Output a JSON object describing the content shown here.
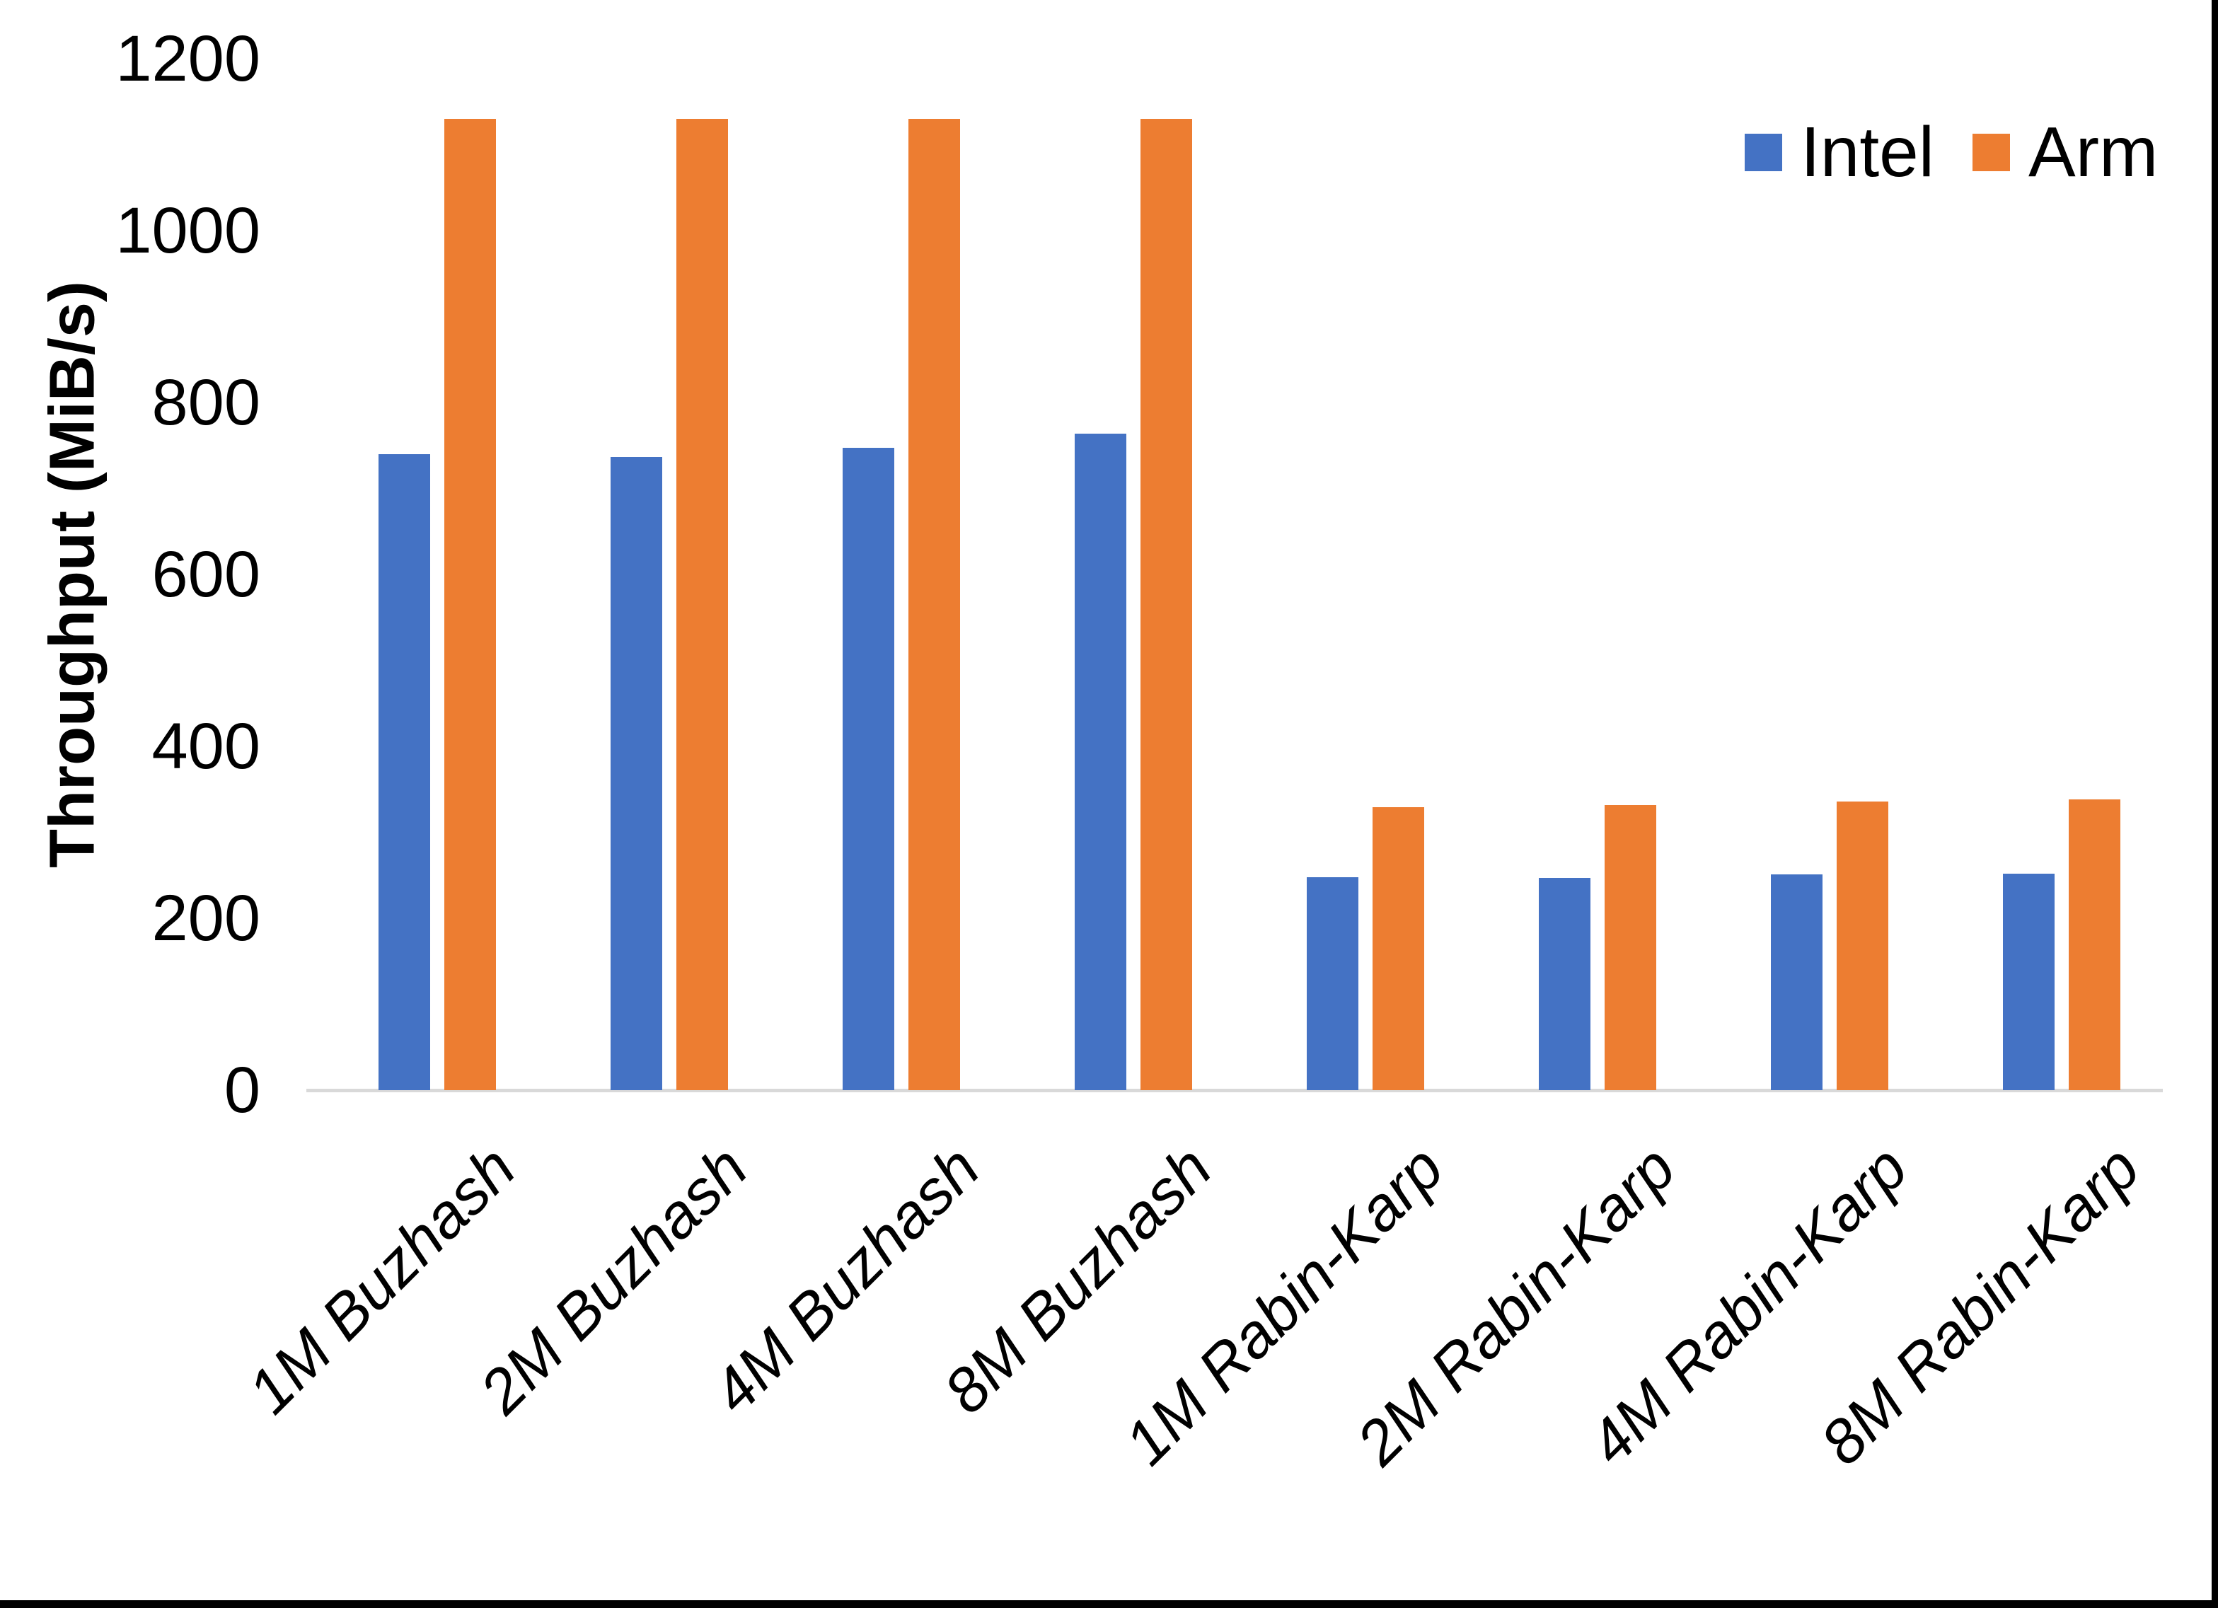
{
  "chart_data": {
    "type": "bar",
    "title": "",
    "ylabel": "Throughput (MiB/s)",
    "xlabel": "",
    "ylim": [
      0,
      1200
    ],
    "yticks": [
      0,
      200,
      400,
      600,
      800,
      1000,
      1200
    ],
    "grid": false,
    "legend_position": "top-right",
    "categories": [
      "1M Buzhash",
      "2M Buzhash",
      "4M Buzhash",
      "8M Buzhash",
      "1M Rabin-Karp",
      "2M Rabin-Karp",
      "4M Rabin-Karp",
      "8M Rabin-Karp"
    ],
    "series": [
      {
        "name": "Intel",
        "color": "#4472C4",
        "values": [
          740,
          737,
          747,
          764,
          248,
          247,
          251,
          252
        ]
      },
      {
        "name": "Arm",
        "color": "#ED7D31",
        "values": [
          1130,
          1130,
          1130,
          1130,
          329,
          332,
          336,
          338
        ]
      }
    ]
  },
  "colors": {
    "axis_line": "#D9D9D9",
    "text": "#000000",
    "background": "#FFFFFF",
    "edge_border": "#000000"
  }
}
